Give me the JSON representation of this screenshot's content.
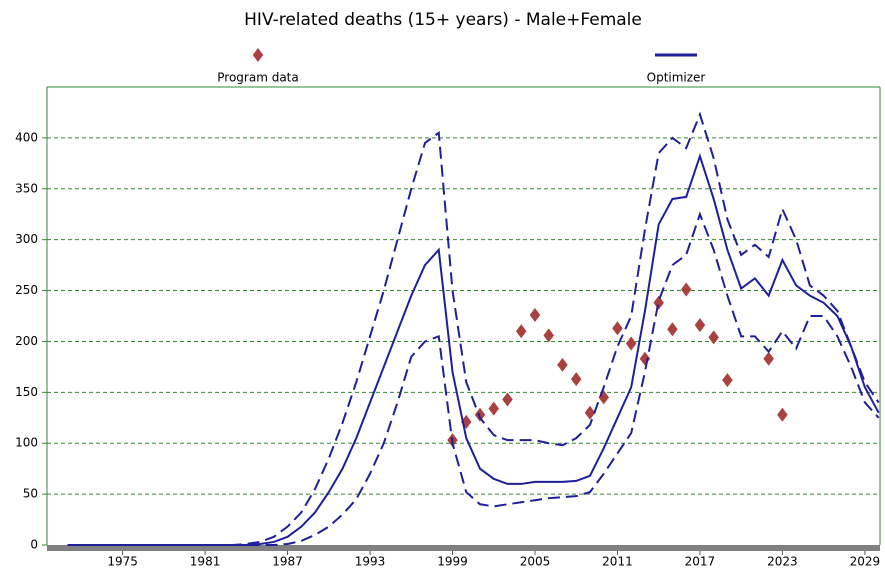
{
  "chart_data": {
    "type": "line",
    "title": "HIV-related deaths (15+ years) - Male+Female",
    "x": [
      1971,
      1972,
      1973,
      1974,
      1975,
      1976,
      1977,
      1978,
      1979,
      1980,
      1981,
      1982,
      1983,
      1984,
      1985,
      1986,
      1987,
      1988,
      1989,
      1990,
      1991,
      1992,
      1993,
      1994,
      1995,
      1996,
      1997,
      1998,
      1999,
      2000,
      2001,
      2002,
      2003,
      2004,
      2005,
      2006,
      2007,
      2008,
      2009,
      2010,
      2011,
      2012,
      2013,
      2014,
      2015,
      2016,
      2017,
      2018,
      2019,
      2020,
      2021,
      2022,
      2023,
      2024,
      2025,
      2026,
      2027,
      2028,
      2029,
      2030
    ],
    "series": [
      {
        "name": "Program data",
        "color": "#a8413f",
        "mode": "markers",
        "x": [
          1999,
          2000,
          2001,
          2002,
          2003,
          2004,
          2005,
          2006,
          2007,
          2008,
          2009,
          2010,
          2011,
          2012,
          2013,
          2014,
          2015,
          2016,
          2017,
          2018,
          2019,
          2022,
          2023
        ],
        "values": [
          103,
          121,
          128,
          134,
          143,
          210,
          226,
          206,
          177,
          163,
          130,
          145,
          213,
          198,
          183,
          238,
          212,
          251,
          216,
          204,
          162,
          183,
          128
        ]
      },
      {
        "name": "Optimizer",
        "color": "#1f1f9a",
        "mode": "lines",
        "dashed": false,
        "values": [
          0,
          0,
          0,
          0,
          0,
          0,
          0,
          0,
          0,
          0,
          0,
          0,
          0,
          0,
          1,
          3,
          8,
          18,
          32,
          52,
          75,
          105,
          140,
          175,
          210,
          245,
          275,
          290,
          170,
          105,
          75,
          65,
          60,
          60,
          62,
          62,
          62,
          63,
          68,
          95,
          125,
          155,
          230,
          315,
          340,
          342,
          382,
          340,
          290,
          252,
          262,
          245,
          280,
          255,
          245,
          238,
          225,
          195,
          155,
          130
        ]
      },
      {
        "color": "#1f1f9a",
        "mode": "lines",
        "dashed": true,
        "values": [
          0,
          0,
          0,
          0,
          0,
          0,
          0,
          0,
          0,
          0,
          0,
          0,
          0,
          1,
          3,
          8,
          18,
          32,
          55,
          85,
          120,
          160,
          205,
          250,
          300,
          350,
          395,
          405,
          250,
          160,
          125,
          108,
          103,
          103,
          103,
          100,
          98,
          105,
          118,
          155,
          195,
          225,
          310,
          385,
          400,
          390,
          423,
          380,
          320,
          285,
          295,
          283,
          330,
          300,
          255,
          245,
          230,
          195,
          160,
          140
        ]
      },
      {
        "color": "#1f1f9a",
        "mode": "lines",
        "dashed": true,
        "values": [
          0,
          0,
          0,
          0,
          0,
          0,
          0,
          0,
          0,
          0,
          0,
          0,
          0,
          0,
          0,
          0,
          1,
          4,
          10,
          18,
          30,
          45,
          70,
          100,
          140,
          185,
          200,
          205,
          100,
          52,
          40,
          38,
          40,
          42,
          44,
          46,
          47,
          48,
          52,
          70,
          90,
          110,
          170,
          240,
          275,
          285,
          325,
          290,
          245,
          205,
          205,
          190,
          210,
          193,
          225,
          225,
          205,
          175,
          140,
          125
        ]
      }
    ],
    "xlim": [
      1969.5,
      2030.1
    ],
    "ylim": [
      0,
      450
    ],
    "xticks": [
      1975,
      1981,
      1987,
      1993,
      1999,
      2005,
      2011,
      2017,
      2023,
      2029
    ],
    "yticks": [
      0,
      50,
      100,
      150,
      200,
      250,
      300,
      350,
      400
    ],
    "grid": true
  }
}
